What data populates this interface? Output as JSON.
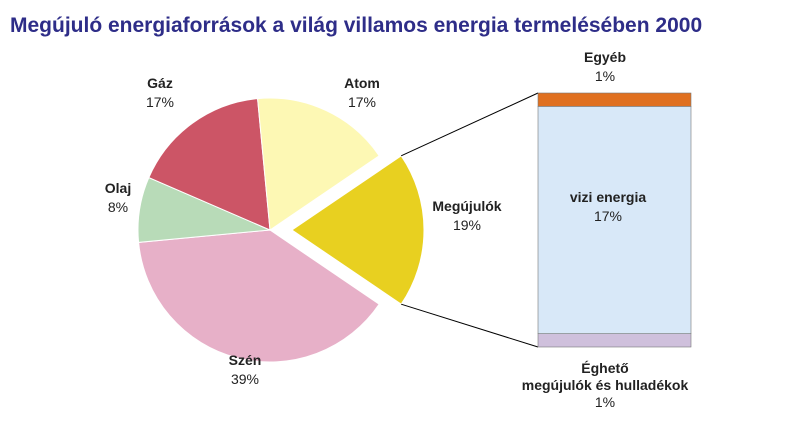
{
  "chart_data": {
    "type": "pie",
    "title": "Megújuló energiaforrások a világ villamos energia termelésében 2000",
    "categories": [
      "Megújulók",
      "Szén",
      "Olaj",
      "Gáz",
      "Atom"
    ],
    "values": [
      19,
      39,
      8,
      17,
      17
    ],
    "value_labels": [
      "19%",
      "39%",
      "8%",
      "17%",
      "17%"
    ],
    "colors": [
      "#e8d020",
      "#e7b0c8",
      "#b8dbb8",
      "#cc5566",
      "#fdf8b4"
    ],
    "exploded": 0,
    "breakdown": {
      "type": "stacked-bar",
      "categories": [
        "Éghető\nmegújulók és hulladékok",
        "vizi energia",
        "Egyéb"
      ],
      "values": [
        1,
        17,
        1
      ],
      "value_labels": [
        "1%",
        "17%",
        "1%"
      ],
      "colors": [
        "#cfc0dc",
        "#d8e8f8",
        "#e07020"
      ]
    }
  }
}
